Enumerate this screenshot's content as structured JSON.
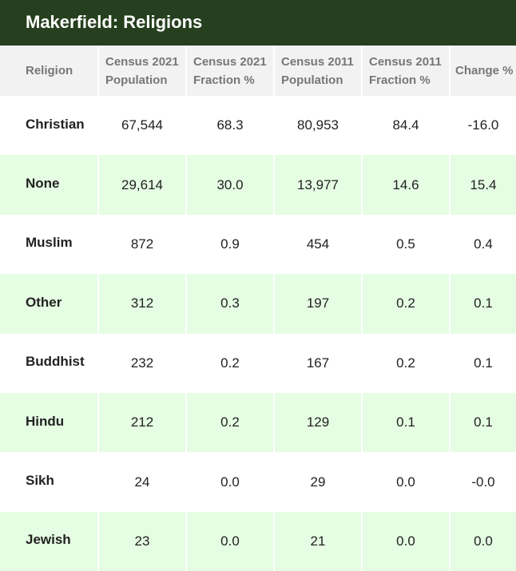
{
  "header": {
    "title": "Makerfield: Religions"
  },
  "table": {
    "headers": [
      "Religion",
      "Census 2021 Population",
      "Census 2021 Fraction %",
      "Census 2011 Population",
      "Census 2011 Fraction %",
      "Change %"
    ],
    "rows": [
      [
        "Christian",
        "67,544",
        "68.3",
        "80,953",
        "84.4",
        "-16.0"
      ],
      [
        "None",
        "29,614",
        "30.0",
        "13,977",
        "14.6",
        "15.4"
      ],
      [
        "Muslim",
        "872",
        "0.9",
        "454",
        "0.5",
        "0.4"
      ],
      [
        "Other",
        "312",
        "0.3",
        "197",
        "0.2",
        "0.1"
      ],
      [
        "Buddhist",
        "232",
        "0.2",
        "167",
        "0.2",
        "0.1"
      ],
      [
        "Hindu",
        "212",
        "0.2",
        "129",
        "0.1",
        "0.1"
      ],
      [
        "Sikh",
        "24",
        "0.0",
        "29",
        "0.0",
        "-0.0"
      ],
      [
        "Jewish",
        "23",
        "0.0",
        "21",
        "0.0",
        "0.0"
      ]
    ]
  }
}
